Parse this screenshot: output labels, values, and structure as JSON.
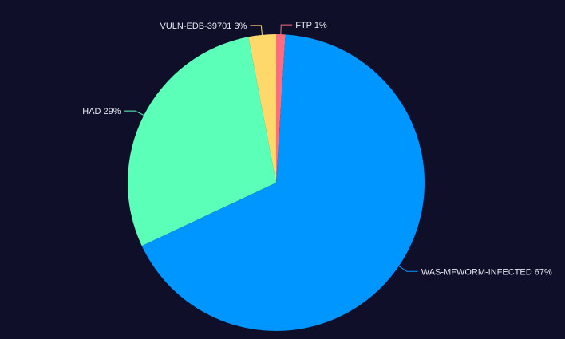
{
  "chart_data": {
    "type": "pie",
    "title": "",
    "slices": [
      {
        "label": "FTP",
        "value": 1,
        "percent_label": "1%",
        "color": "#ff6b7f"
      },
      {
        "label": "WAS-MFWORM-INFECTED",
        "value": 67,
        "percent_label": "67%",
        "color": "#0096ff"
      },
      {
        "label": "HAD",
        "value": 29,
        "percent_label": "29%",
        "color": "#5cffb8"
      },
      {
        "label": "VULN-EDB-39701",
        "value": 3,
        "percent_label": "3%",
        "color": "#ffd86b"
      }
    ],
    "start_angle_deg": 90,
    "direction": "clockwise",
    "labels": "outside with leader lines",
    "legend": "none"
  },
  "colors": {
    "background": "#0f0f2a",
    "label_text": "#e6e8f0"
  }
}
